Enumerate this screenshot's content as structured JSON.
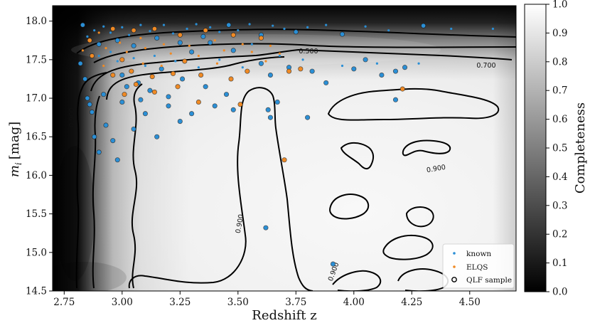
{
  "chart_data": {
    "type": "scatter",
    "xlabel": "Redshift z",
    "ylabel_var": "m",
    "ylabel_sub": "i",
    "ylabel_unit": "[mag]",
    "colorbar_label": "Completeness",
    "xlim": [
      2.7,
      4.7
    ],
    "ylim": [
      14.5,
      18.2
    ],
    "colorbar_range": [
      0.0,
      1.0
    ],
    "x_ticks": [
      "2.75",
      "3.00",
      "3.25",
      "3.50",
      "3.75",
      "4.00",
      "4.25",
      "4.50"
    ],
    "y_ticks": [
      "14.5",
      "15.0",
      "15.5",
      "16.0",
      "16.5",
      "17.0",
      "17.5",
      "18.0"
    ],
    "colorbar_ticks": [
      "0.0",
      "0.1",
      "0.2",
      "0.3",
      "0.4",
      "0.5",
      "0.6",
      "0.7",
      "0.8",
      "0.9",
      "1.0"
    ],
    "contour_levels": [
      "0.500",
      "0.700",
      "0.900"
    ],
    "contour_labels": [
      {
        "text": "0.500",
        "z": 3.86,
        "m": 17.65
      },
      {
        "text": "0.700",
        "z": 4.57,
        "m": 17.33
      },
      {
        "text": "0.900",
        "z": 2.8,
        "m": 16.85
      },
      {
        "text": "0.900",
        "z": 3.52,
        "m": 15.35
      },
      {
        "text": "0.900",
        "z": 4.35,
        "m": 16.05
      },
      {
        "text": "0.900",
        "z": 3.91,
        "m": 14.72
      }
    ],
    "legend_position": "bottom-right",
    "legend": [
      {
        "label": "known",
        "marker": "dot",
        "color": "#2a8fd6"
      },
      {
        "label": "ELQS",
        "marker": "dot",
        "color": "#f08a24"
      },
      {
        "label": "QLF sample",
        "marker": "ring",
        "color": "#000000"
      }
    ],
    "series": [
      {
        "name": "known",
        "color": "#2a8fd6",
        "points": [
          [
            2.83,
            17.95
          ],
          [
            2.85,
            17.8
          ],
          [
            2.88,
            17.88
          ],
          [
            2.9,
            17.7
          ],
          [
            2.92,
            17.93
          ],
          [
            2.95,
            17.85
          ],
          [
            2.98,
            17.75
          ],
          [
            3.0,
            17.92
          ],
          [
            3.03,
            17.82
          ],
          [
            3.05,
            17.68
          ],
          [
            3.08,
            17.95
          ],
          [
            3.12,
            17.87
          ],
          [
            3.15,
            17.78
          ],
          [
            3.18,
            17.95
          ],
          [
            3.22,
            17.84
          ],
          [
            3.25,
            17.72
          ],
          [
            3.28,
            17.9
          ],
          [
            3.32,
            17.96
          ],
          [
            3.35,
            17.8
          ],
          [
            3.38,
            17.92
          ],
          [
            3.42,
            17.86
          ],
          [
            3.46,
            17.95
          ],
          [
            3.5,
            17.88
          ],
          [
            3.55,
            17.96
          ],
          [
            3.6,
            17.82
          ],
          [
            3.65,
            17.94
          ],
          [
            3.7,
            17.9
          ],
          [
            3.75,
            17.86
          ],
          [
            3.8,
            17.92
          ],
          [
            3.88,
            17.95
          ],
          [
            3.95,
            17.83
          ],
          [
            4.05,
            17.93
          ],
          [
            4.15,
            17.88
          ],
          [
            4.3,
            17.94
          ],
          [
            4.42,
            17.9
          ],
          [
            4.6,
            17.9
          ],
          [
            2.82,
            17.45
          ],
          [
            2.84,
            17.25
          ],
          [
            2.85,
            17.0
          ],
          [
            2.86,
            16.92
          ],
          [
            2.87,
            16.82
          ],
          [
            2.9,
            17.55
          ],
          [
            2.92,
            17.05
          ],
          [
            2.95,
            17.6
          ],
          [
            2.98,
            17.48
          ],
          [
            3.0,
            17.3
          ],
          [
            3.02,
            17.15
          ],
          [
            3.05,
            17.52
          ],
          [
            3.07,
            17.2
          ],
          [
            3.08,
            16.98
          ],
          [
            3.1,
            17.42
          ],
          [
            3.12,
            17.1
          ],
          [
            3.14,
            17.55
          ],
          [
            3.17,
            17.38
          ],
          [
            3.2,
            17.02
          ],
          [
            3.23,
            17.48
          ],
          [
            3.26,
            17.25
          ],
          [
            3.3,
            17.6
          ],
          [
            3.33,
            17.4
          ],
          [
            3.36,
            17.15
          ],
          [
            3.38,
            17.72
          ],
          [
            3.42,
            17.5
          ],
          [
            3.45,
            17.05
          ],
          [
            3.48,
            17.62
          ],
          [
            3.52,
            17.4
          ],
          [
            3.56,
            17.7
          ],
          [
            3.6,
            17.45
          ],
          [
            3.64,
            17.3
          ],
          [
            3.68,
            17.55
          ],
          [
            3.72,
            17.4
          ],
          [
            3.78,
            17.5
          ],
          [
            3.82,
            17.35
          ],
          [
            3.88,
            17.2
          ],
          [
            3.95,
            17.42
          ],
          [
            4.0,
            17.38
          ],
          [
            4.05,
            17.5
          ],
          [
            4.1,
            17.45
          ],
          [
            4.18,
            17.35
          ],
          [
            4.22,
            17.4
          ],
          [
            4.28,
            17.45
          ],
          [
            2.88,
            16.5
          ],
          [
            2.9,
            16.3
          ],
          [
            2.93,
            16.65
          ],
          [
            2.96,
            16.45
          ],
          [
            2.98,
            16.2
          ],
          [
            3.0,
            16.95
          ],
          [
            3.05,
            16.6
          ],
          [
            3.1,
            16.8
          ],
          [
            3.15,
            16.5
          ],
          [
            3.2,
            16.9
          ],
          [
            3.25,
            16.7
          ],
          [
            3.3,
            16.8
          ],
          [
            3.4,
            16.9
          ],
          [
            3.48,
            16.85
          ],
          [
            3.64,
            16.75
          ],
          [
            3.67,
            16.95
          ],
          [
            3.8,
            16.75
          ],
          [
            4.18,
            16.98
          ],
          [
            3.63,
            16.85
          ],
          [
            3.62,
            15.32
          ],
          [
            3.91,
            14.85
          ],
          [
            4.12,
            17.3
          ]
        ]
      },
      {
        "name": "ELQS",
        "color": "#f08a24",
        "points": [
          [
            2.86,
            17.75
          ],
          [
            2.9,
            17.85
          ],
          [
            2.93,
            17.65
          ],
          [
            2.96,
            17.9
          ],
          [
            2.99,
            17.72
          ],
          [
            3.02,
            17.6
          ],
          [
            3.05,
            17.88
          ],
          [
            3.08,
            17.78
          ],
          [
            3.1,
            17.65
          ],
          [
            3.14,
            17.9
          ],
          [
            3.18,
            17.7
          ],
          [
            3.21,
            17.58
          ],
          [
            3.25,
            17.82
          ],
          [
            3.29,
            17.68
          ],
          [
            3.33,
            17.55
          ],
          [
            3.36,
            17.88
          ],
          [
            3.4,
            17.75
          ],
          [
            3.44,
            17.62
          ],
          [
            3.48,
            17.82
          ],
          [
            3.52,
            17.7
          ],
          [
            3.56,
            17.6
          ],
          [
            3.6,
            17.78
          ],
          [
            3.64,
            17.68
          ],
          [
            3.68,
            17.58
          ],
          [
            2.87,
            17.55
          ],
          [
            2.92,
            17.42
          ],
          [
            2.96,
            17.3
          ],
          [
            3.0,
            17.5
          ],
          [
            3.04,
            17.35
          ],
          [
            3.09,
            17.45
          ],
          [
            3.13,
            17.28
          ],
          [
            3.17,
            17.42
          ],
          [
            3.22,
            17.32
          ],
          [
            3.27,
            17.48
          ],
          [
            3.34,
            17.3
          ],
          [
            3.41,
            17.45
          ],
          [
            3.47,
            17.25
          ],
          [
            3.54,
            17.35
          ],
          [
            3.62,
            17.48
          ],
          [
            3.72,
            17.35
          ],
          [
            3.77,
            17.38
          ],
          [
            2.83,
            17.62
          ],
          [
            3.01,
            17.05
          ],
          [
            3.06,
            17.18
          ],
          [
            3.14,
            17.08
          ],
          [
            3.24,
            17.15
          ],
          [
            3.33,
            16.95
          ],
          [
            3.51,
            16.92
          ],
          [
            3.7,
            16.2
          ],
          [
            4.21,
            17.12
          ]
        ]
      }
    ]
  }
}
